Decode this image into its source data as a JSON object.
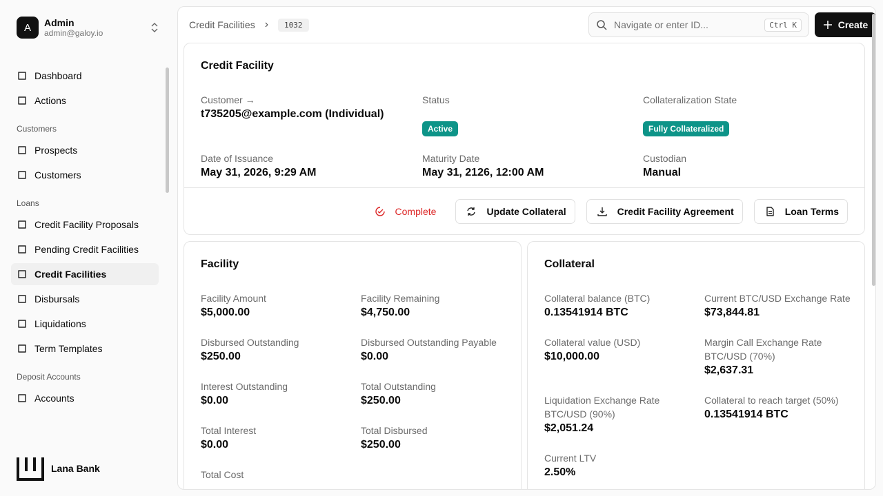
{
  "sidebar": {
    "user": {
      "initial": "A",
      "name": "Admin",
      "email": "admin@galoy.io"
    },
    "nav": [
      {
        "label": "Dashboard"
      },
      {
        "label": "Actions"
      }
    ],
    "groups": [
      {
        "title": "Customers",
        "items": [
          {
            "label": "Prospects"
          },
          {
            "label": "Customers"
          }
        ]
      },
      {
        "title": "Loans",
        "items": [
          {
            "label": "Credit Facility Proposals"
          },
          {
            "label": "Pending Credit Facilities"
          },
          {
            "label": "Credit Facilities",
            "active": true
          },
          {
            "label": "Disbursals"
          },
          {
            "label": "Liquidations"
          },
          {
            "label": "Term Templates"
          }
        ]
      },
      {
        "title": "Deposit Accounts",
        "items": [
          {
            "label": "Accounts"
          }
        ]
      }
    ],
    "brand": "Lana Bank"
  },
  "header": {
    "breadcrumb": [
      "Credit Facilities",
      "1032"
    ],
    "search_placeholder": "Navigate or enter ID...",
    "shortcut": "Ctrl K",
    "create": "Create"
  },
  "details": {
    "title": "Credit Facility",
    "fields": [
      {
        "label": "Customer",
        "value": "t735205@example.com (Individual)"
      },
      {
        "label": "Status",
        "badge": "Active"
      },
      {
        "label": "Collateralization State",
        "badge": "Fully Collateralized"
      },
      {
        "label": "Date of Issuance",
        "value": "May 31, 2026, 9:29 AM"
      },
      {
        "label": "Maturity Date",
        "value": "May 31, 2126, 12:00 AM"
      },
      {
        "label": "Custodian",
        "value": "Manual"
      }
    ],
    "actions": [
      "Complete",
      "Update Collateral",
      "Credit Facility Agreement",
      "Loan Terms"
    ]
  },
  "facility": {
    "title": "Facility",
    "items": [
      {
        "label": "Facility Amount",
        "value": "$5,000.00"
      },
      {
        "label": "Facility Remaining",
        "value": "$4,750.00"
      },
      {
        "label": "Disbursed Outstanding",
        "value": "$250.00"
      },
      {
        "label": "Disbursed Outstanding Payable",
        "value": "$0.00"
      },
      {
        "label": "Interest Outstanding",
        "value": "$0.00"
      },
      {
        "label": "Total Outstanding",
        "value": "$250.00"
      },
      {
        "label": "Total Interest",
        "value": "$0.00"
      },
      {
        "label": "Total Disbursed",
        "value": "$250.00"
      },
      {
        "label": "Total Cost"
      }
    ]
  },
  "collateral": {
    "title": "Collateral",
    "items": [
      {
        "label": "Collateral balance (BTC)",
        "value": "0.13541914 BTC"
      },
      {
        "label": "Current BTC/USD Exchange Rate",
        "value": "$73,844.81"
      },
      {
        "label": "Collateral value (USD)",
        "value": "$10,000.00"
      },
      {
        "label": "Margin Call Exchange Rate BTC/USD (70%)",
        "value": "$2,637.31"
      },
      {
        "label": "Liquidation Exchange Rate BTC/USD (90%)",
        "value": "$2,051.24"
      },
      {
        "label": "Collateral to reach target (50%)",
        "value": "0.13541914 BTC"
      },
      {
        "label": "Current LTV",
        "value": "2.50%"
      }
    ]
  }
}
